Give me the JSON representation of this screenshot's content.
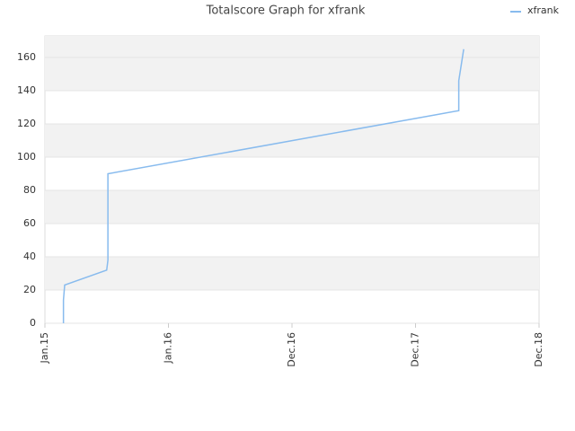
{
  "chart_data": {
    "type": "line",
    "title": "Totalscore Graph for xfrank",
    "xlim": [
      0,
      4
    ],
    "xticks": [
      {
        "value": 0,
        "label": "Jan.15"
      },
      {
        "value": 1,
        "label": "Jan.16"
      },
      {
        "value": 2,
        "label": "Dec.16"
      },
      {
        "value": 3,
        "label": "Dec.17"
      },
      {
        "value": 4,
        "label": "Dec.18"
      }
    ],
    "ylim": [
      0,
      173
    ],
    "yticks": [
      0,
      20,
      40,
      60,
      80,
      100,
      120,
      140,
      160
    ],
    "grid": true,
    "legend": "top-right",
    "series": [
      {
        "name": "xfrank",
        "color": "#88bbee",
        "x": [
          0.15,
          0.15,
          0.16,
          0.5,
          0.51,
          0.51,
          3.35,
          3.35,
          3.39
        ],
        "values": [
          0,
          14,
          23,
          32,
          38,
          90,
          128,
          146,
          165
        ]
      }
    ]
  }
}
